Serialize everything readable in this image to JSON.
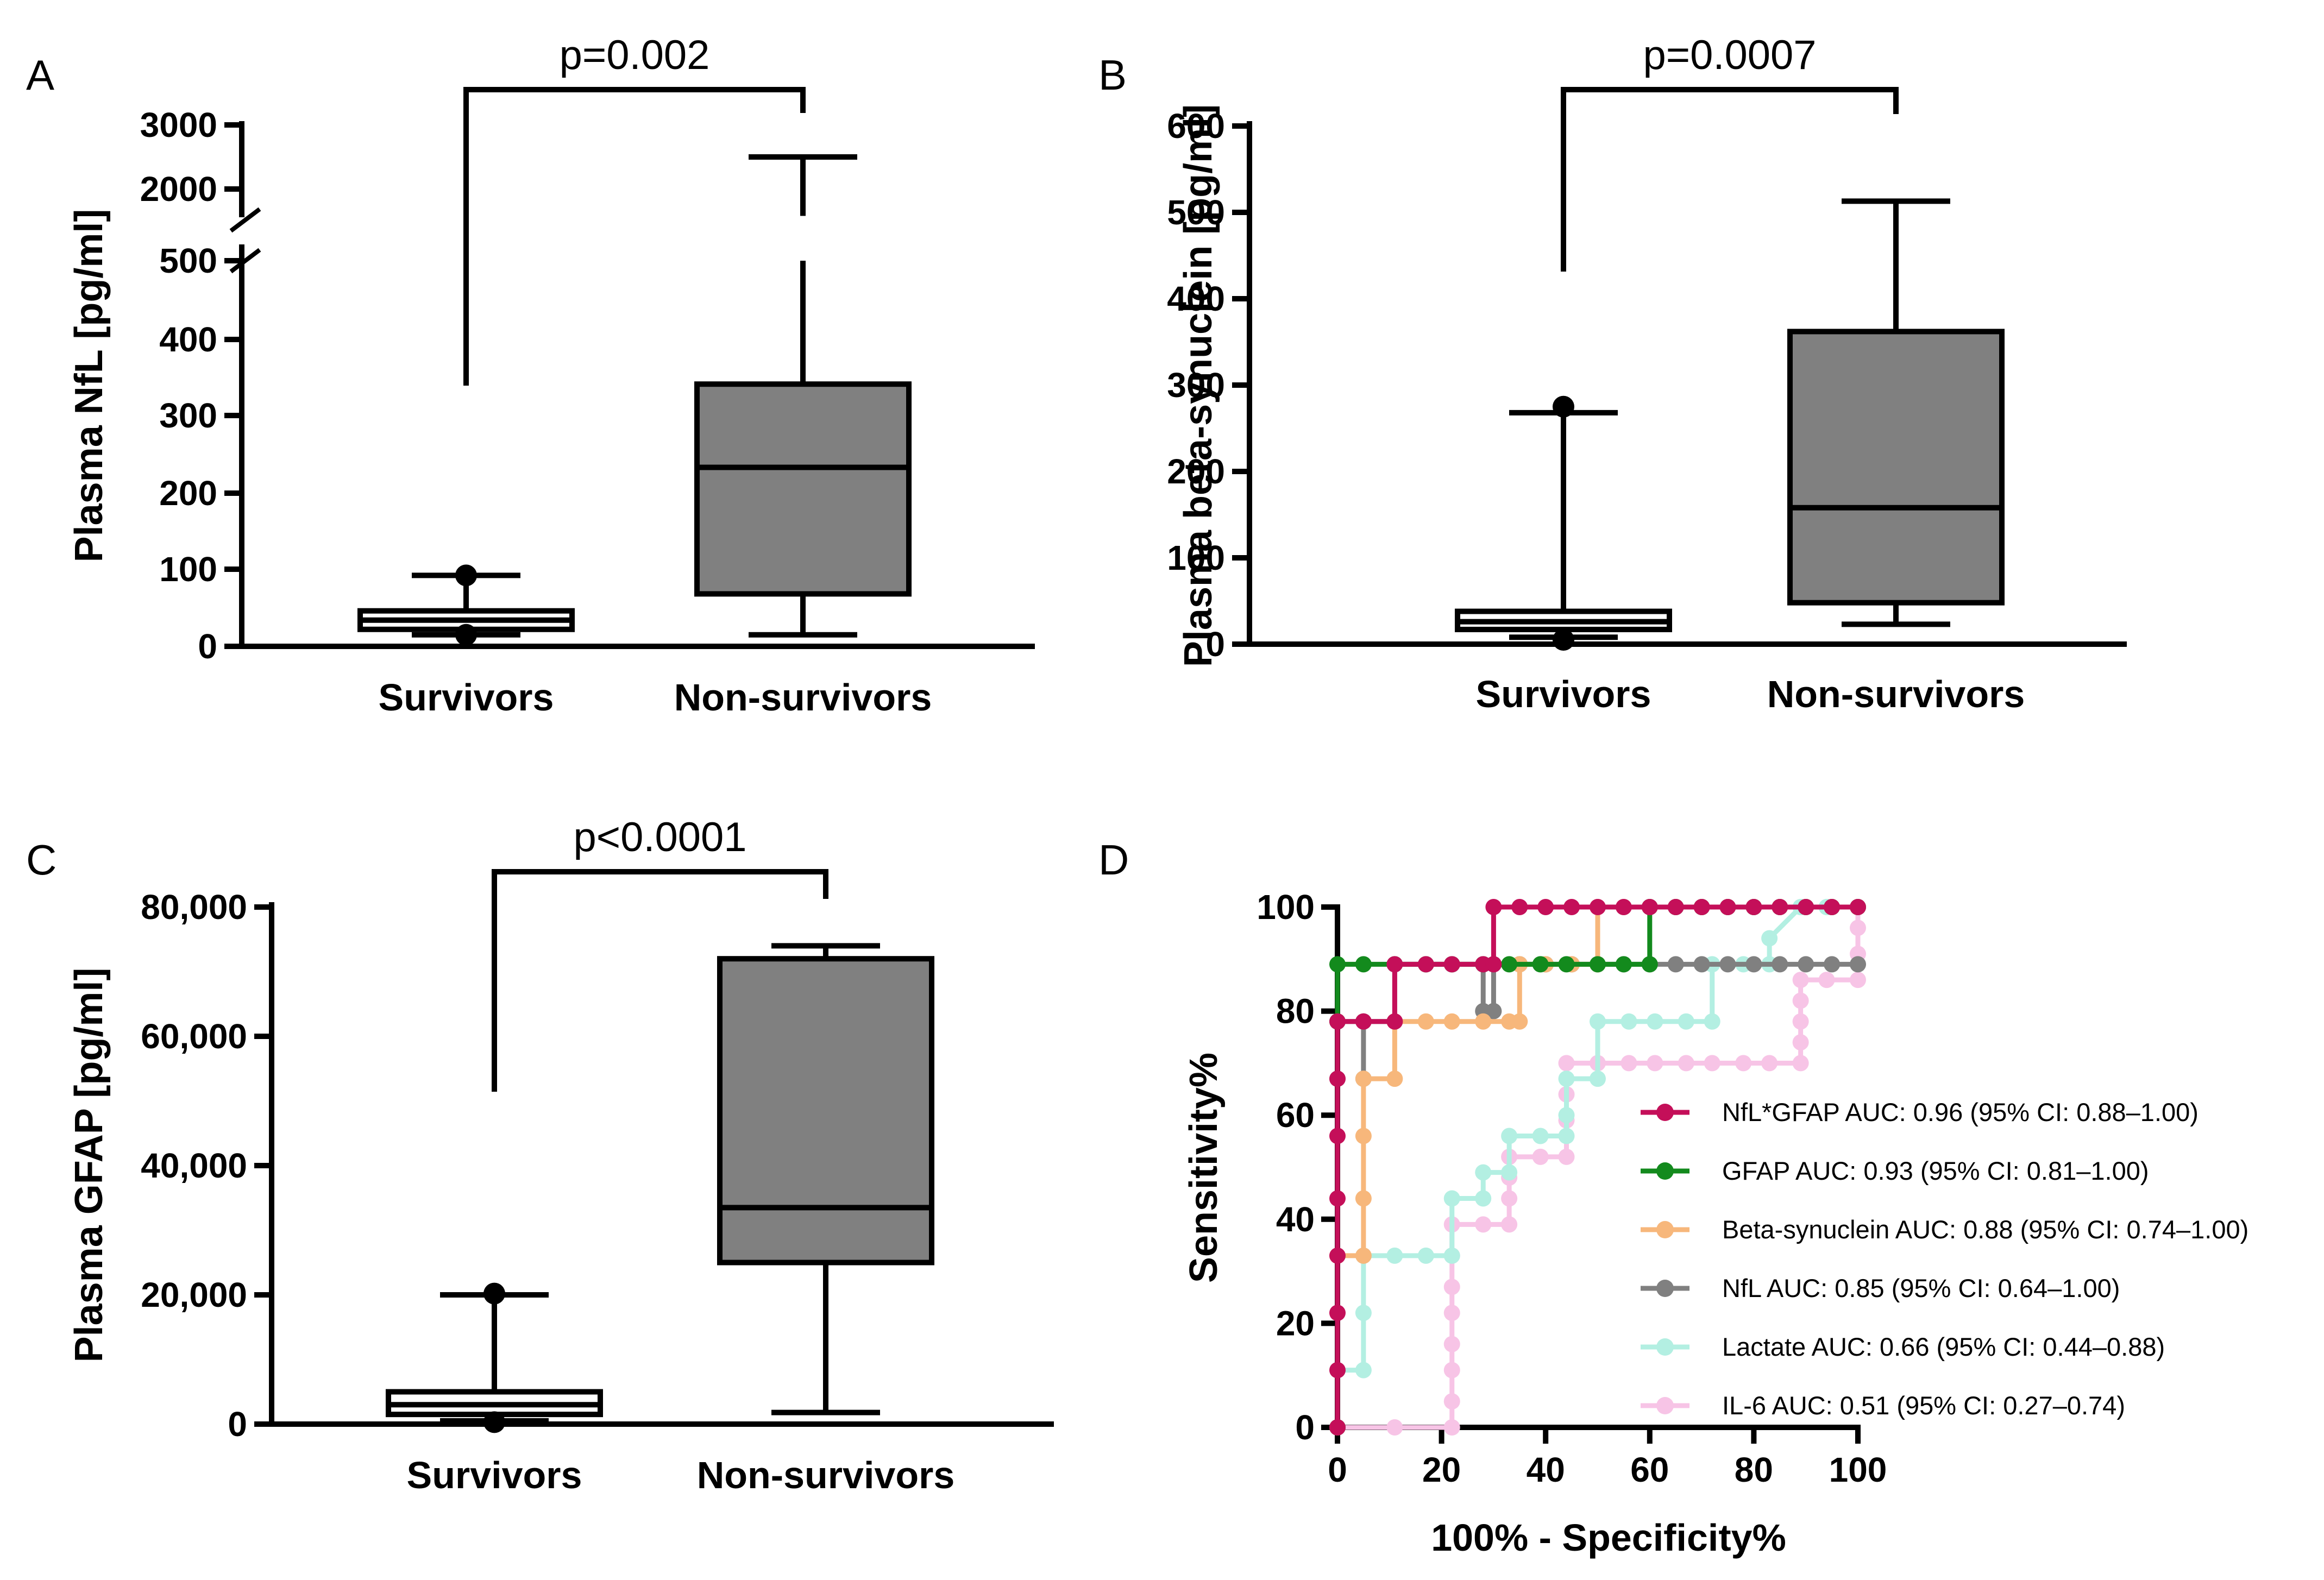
{
  "chart_data": [
    {
      "id": "A",
      "panel_label": "A",
      "type": "box",
      "ylabel": "Plasma NfL [pg/ml]",
      "categories": [
        "Survivors",
        "Non-survivors"
      ],
      "yticks": [
        "3000",
        "2000",
        "500",
        "400",
        "300",
        "200",
        "100",
        "0"
      ],
      "axis_break": {
        "lower_max": 500,
        "upper_min": 2000,
        "upper_max": 3000
      },
      "significance": "p=0.002",
      "boxes": [
        {
          "name": "Survivors",
          "fill": "#ffffff",
          "whisker_min": 15,
          "q1": 22,
          "median": 34,
          "q3": 46,
          "whisker_max": 92,
          "outliers": [
            92,
            15
          ]
        },
        {
          "name": "Non-survivors",
          "fill": "#808080",
          "whisker_min": 15,
          "q1": 68,
          "median": 232,
          "q3": 340,
          "whisker_max": 2500,
          "outliers": []
        }
      ]
    },
    {
      "id": "B",
      "panel_label": "B",
      "type": "box",
      "ylabel": "Plasma beta-synuclein [pg/ml]",
      "categories": [
        "Survivors",
        "Non-survivors"
      ],
      "yticks": [
        "600",
        "500",
        "400",
        "300",
        "200",
        "100",
        "0"
      ],
      "ylim": [
        0,
        600
      ],
      "significance": "p=0.0007",
      "boxes": [
        {
          "name": "Survivors",
          "fill": "#ffffff",
          "whisker_min": 8,
          "q1": 17,
          "median": 26,
          "q3": 38,
          "whisker_max": 268,
          "outliers": [
            275,
            5
          ]
        },
        {
          "name": "Non-survivors",
          "fill": "#808080",
          "whisker_min": 23,
          "q1": 48,
          "median": 158,
          "q3": 362,
          "whisker_max": 513,
          "outliers": []
        }
      ]
    },
    {
      "id": "C",
      "panel_label": "C",
      "type": "box",
      "ylabel": "Plasma GFAP [pg/ml]",
      "categories": [
        "Survivors",
        "Non-survivors"
      ],
      "yticks": [
        "80,000",
        "60,000",
        "40,000",
        "20,000",
        "0"
      ],
      "ylim": [
        0,
        80000
      ],
      "significance": "p<0.0001",
      "boxes": [
        {
          "name": "Survivors",
          "fill": "#ffffff",
          "whisker_min": 500,
          "q1": 1500,
          "median": 3000,
          "q3": 5000,
          "whisker_max": 20000,
          "outliers": [
            20200,
            300
          ]
        },
        {
          "name": "Non-survivors",
          "fill": "#808080",
          "whisker_min": 1800,
          "q1": 25000,
          "median": 33500,
          "q3": 72000,
          "whisker_max": 74000,
          "outliers": []
        }
      ]
    },
    {
      "id": "D",
      "panel_label": "D",
      "type": "line",
      "xlabel": "100% - Specificity%",
      "ylabel": "Sensitivity%",
      "xlim": [
        0,
        100
      ],
      "ylim": [
        0,
        100
      ],
      "xticks": [
        "0",
        "20",
        "40",
        "60",
        "80",
        "100"
      ],
      "yticks": [
        "100",
        "80",
        "60",
        "40",
        "20",
        "0"
      ],
      "series": [
        {
          "name": "IL-6",
          "legend": "IL-6 AUC: 0.51 (95% CI: 0.27–0.74)",
          "color": "#f7c4e6",
          "points": [
            [
              0,
              0
            ],
            [
              11,
              0
            ],
            [
              22,
              0
            ],
            [
              22,
              5
            ],
            [
              22,
              11
            ],
            [
              22,
              16
            ],
            [
              22,
              22
            ],
            [
              22,
              27
            ],
            [
              22,
              33
            ],
            [
              22,
              39
            ],
            [
              28,
              39
            ],
            [
              33,
              39
            ],
            [
              33,
              44
            ],
            [
              33,
              48
            ],
            [
              33,
              52
            ],
            [
              39,
              52
            ],
            [
              44,
              52
            ],
            [
              44,
              59
            ],
            [
              44,
              64
            ],
            [
              44,
              70
            ],
            [
              50,
              70
            ],
            [
              56,
              70
            ],
            [
              61,
              70
            ],
            [
              67,
              70
            ],
            [
              72,
              70
            ],
            [
              78,
              70
            ],
            [
              83,
              70
            ],
            [
              89,
              70
            ],
            [
              89,
              74
            ],
            [
              89,
              78
            ],
            [
              89,
              82
            ],
            [
              89,
              86
            ],
            [
              94,
              86
            ],
            [
              100,
              86
            ],
            [
              100,
              91
            ],
            [
              100,
              96
            ],
            [
              100,
              100
            ]
          ]
        },
        {
          "name": "Lactate",
          "legend": "Lactate AUC: 0.66 (95% CI: 0.44–0.88)",
          "color": "#b3efe2",
          "points": [
            [
              0,
              0
            ],
            [
              0,
              11
            ],
            [
              5,
              11
            ],
            [
              5,
              22
            ],
            [
              5,
              33
            ],
            [
              11,
              33
            ],
            [
              17,
              33
            ],
            [
              22,
              33
            ],
            [
              22,
              44
            ],
            [
              28,
              44
            ],
            [
              28,
              49
            ],
            [
              33,
              49
            ],
            [
              33,
              56
            ],
            [
              39,
              56
            ],
            [
              44,
              56
            ],
            [
              44,
              60
            ],
            [
              44,
              67
            ],
            [
              50,
              67
            ],
            [
              50,
              78
            ],
            [
              56,
              78
            ],
            [
              61,
              78
            ],
            [
              67,
              78
            ],
            [
              72,
              78
            ],
            [
              72,
              89
            ],
            [
              78,
              89
            ],
            [
              83,
              89
            ],
            [
              83,
              94
            ],
            [
              89,
              100
            ],
            [
              94,
              100
            ],
            [
              100,
              100
            ]
          ]
        },
        {
          "name": "NfL",
          "legend": "NfL AUC: 0.85 (95% CI: 0.64–1.00)",
          "color": "#808080",
          "points": [
            [
              0,
              0
            ],
            [
              0,
              67
            ],
            [
              0,
              78
            ],
            [
              5,
              78
            ],
            [
              5,
              67
            ],
            [
              5,
              78
            ],
            [
              11,
              78
            ],
            [
              11,
              89
            ],
            [
              17,
              89
            ],
            [
              22,
              89
            ],
            [
              28,
              89
            ],
            [
              28,
              80
            ],
            [
              30,
              80
            ],
            [
              30,
              89
            ],
            [
              35,
              89
            ],
            [
              40,
              89
            ],
            [
              45,
              89
            ],
            [
              50,
              89
            ],
            [
              55,
              89
            ],
            [
              60,
              89
            ],
            [
              65,
              89
            ],
            [
              70,
              89
            ],
            [
              75,
              89
            ],
            [
              80,
              89
            ],
            [
              85,
              89
            ],
            [
              90,
              89
            ],
            [
              95,
              89
            ],
            [
              100,
              89
            ]
          ]
        },
        {
          "name": "Beta-synuclein",
          "legend": "Beta-synuclein AUC: 0.88 (95% CI: 0.74–1.00)",
          "color": "#f7b77b",
          "points": [
            [
              0,
              0
            ],
            [
              0,
              33
            ],
            [
              5,
              33
            ],
            [
              5,
              44
            ],
            [
              5,
              56
            ],
            [
              5,
              67
            ],
            [
              11,
              67
            ],
            [
              11,
              78
            ],
            [
              17,
              78
            ],
            [
              22,
              78
            ],
            [
              28,
              78
            ],
            [
              33,
              78
            ],
            [
              35,
              78
            ],
            [
              35,
              89
            ],
            [
              40,
              89
            ],
            [
              45,
              89
            ],
            [
              50,
              89
            ],
            [
              50,
              100
            ],
            [
              55,
              100
            ],
            [
              60,
              100
            ],
            [
              65,
              100
            ],
            [
              70,
              100
            ],
            [
              75,
              100
            ],
            [
              80,
              100
            ],
            [
              85,
              100
            ],
            [
              90,
              100
            ],
            [
              95,
              100
            ],
            [
              100,
              100
            ]
          ]
        },
        {
          "name": "GFAP",
          "legend": "GFAP AUC: 0.93 (95% CI: 0.81–1.00)",
          "color": "#138a1d",
          "points": [
            [
              0,
              0
            ],
            [
              0,
              78
            ],
            [
              0,
              89
            ],
            [
              5,
              89
            ],
            [
              11,
              89
            ],
            [
              17,
              89
            ],
            [
              22,
              89
            ],
            [
              28,
              89
            ],
            [
              33,
              89
            ],
            [
              39,
              89
            ],
            [
              44,
              89
            ],
            [
              50,
              89
            ],
            [
              55,
              89
            ],
            [
              60,
              89
            ],
            [
              60,
              100
            ],
            [
              65,
              100
            ],
            [
              70,
              100
            ],
            [
              75,
              100
            ],
            [
              80,
              100
            ],
            [
              85,
              100
            ],
            [
              90,
              100
            ],
            [
              95,
              100
            ],
            [
              100,
              100
            ]
          ]
        },
        {
          "name": "NfL*GFAP",
          "legend": "NfL*GFAP AUC: 0.96 (95% CI: 0.88–1.00)",
          "color": "#c40f59",
          "points": [
            [
              0,
              0
            ],
            [
              0,
              11
            ],
            [
              0,
              22
            ],
            [
              0,
              33
            ],
            [
              0,
              44
            ],
            [
              0,
              56
            ],
            [
              0,
              67
            ],
            [
              0,
              78
            ],
            [
              5,
              78
            ],
            [
              11,
              78
            ],
            [
              11,
              89
            ],
            [
              17,
              89
            ],
            [
              22,
              89
            ],
            [
              28,
              89
            ],
            [
              30,
              89
            ],
            [
              30,
              100
            ],
            [
              35,
              100
            ],
            [
              40,
              100
            ],
            [
              45,
              100
            ],
            [
              50,
              100
            ],
            [
              55,
              100
            ],
            [
              60,
              100
            ],
            [
              65,
              100
            ],
            [
              70,
              100
            ],
            [
              75,
              100
            ],
            [
              80,
              100
            ],
            [
              85,
              100
            ],
            [
              90,
              100
            ],
            [
              95,
              100
            ],
            [
              100,
              100
            ]
          ]
        }
      ],
      "legend_order": [
        "NfL*GFAP",
        "GFAP",
        "Beta-synuclein",
        "NfL",
        "Lactate",
        "IL-6"
      ]
    }
  ]
}
